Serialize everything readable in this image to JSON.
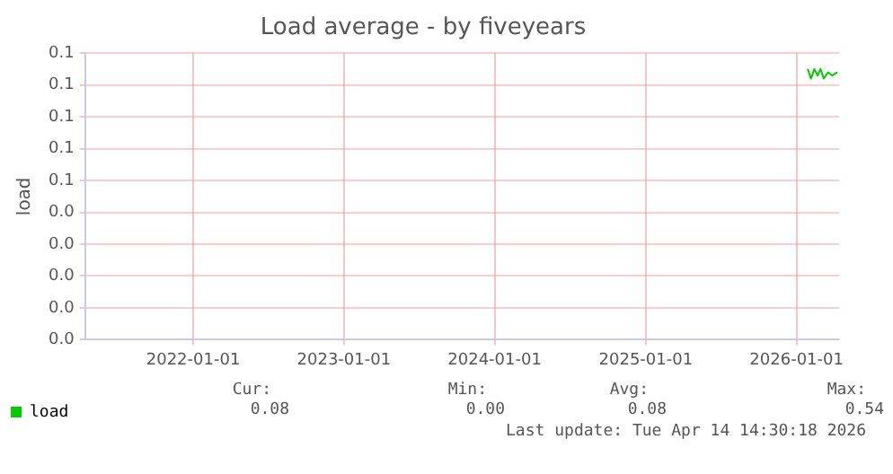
{
  "chart_data": {
    "type": "line",
    "title": "Load average - by fiveyears",
    "ylabel": "load",
    "x": [
      "2026-01-28",
      "2026-02-05",
      "2026-02-13",
      "2026-02-21",
      "2026-02-28",
      "2026-03-08",
      "2026-03-18",
      "2026-03-28",
      "2026-04-10"
    ],
    "series": [
      {
        "name": "load",
        "color": "#00cc00",
        "values": [
          0.085,
          0.082,
          0.085,
          0.083,
          0.085,
          0.082,
          0.084,
          0.083,
          0.084
        ]
      }
    ],
    "xlim": [
      "2021-04-14",
      "2026-04-14"
    ],
    "xticks": [
      "2022-01-01",
      "2023-01-01",
      "2024-01-01",
      "2025-01-01",
      "2026-01-01"
    ],
    "ylim": [
      0,
      0.09
    ],
    "yticks": [
      {
        "value": 0,
        "label": "0.0"
      },
      {
        "value": 0.01,
        "label": "0.0"
      },
      {
        "value": 0.02,
        "label": "0.0"
      },
      {
        "value": 0.03,
        "label": "0.0"
      },
      {
        "value": 0.04,
        "label": "0.0"
      },
      {
        "value": 0.05,
        "label": "0.1"
      },
      {
        "value": 0.06,
        "label": "0.1"
      },
      {
        "value": 0.07,
        "label": "0.1"
      },
      {
        "value": 0.08,
        "label": "0.1"
      },
      {
        "value": 0.09,
        "label": "0.1"
      }
    ],
    "grid": true,
    "legend": "bottom left",
    "marker": "none",
    "line_style": "solid",
    "annotations": [
      "Cur:",
      "0.08",
      "Min:",
      "0.00",
      "Avg:",
      "0.08",
      "Max:",
      "0.54",
      "Last update: Tue Apr 14 14:30:18 2026"
    ]
  }
}
